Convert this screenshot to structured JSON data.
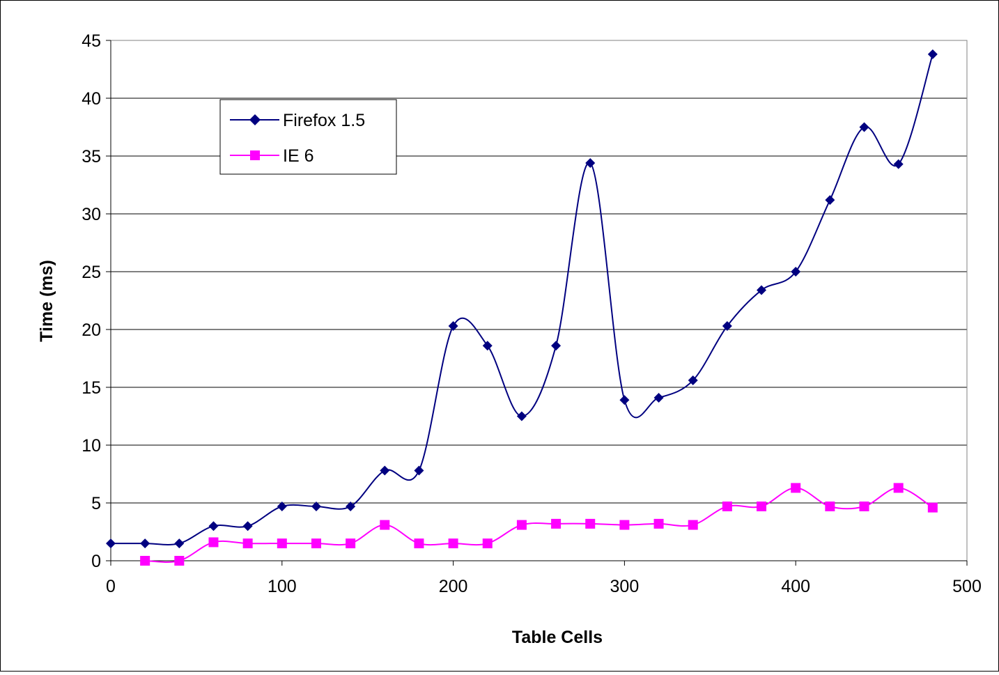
{
  "chart_data": {
    "type": "line",
    "title": "",
    "xlabel": "Table Cells",
    "ylabel": "Time (ms)",
    "xlim": [
      0,
      500
    ],
    "ylim": [
      0,
      45
    ],
    "xticks": [
      "0",
      "100",
      "200",
      "300",
      "400",
      "500"
    ],
    "yticks": [
      "0",
      "5",
      "10",
      "15",
      "20",
      "25",
      "30",
      "35",
      "40",
      "45"
    ],
    "grid": "horizontal",
    "legend_position": "top-left",
    "smoothed": true,
    "series": [
      {
        "name": "Firefox 1.5",
        "color": "#000080",
        "marker": "diamond",
        "x": [
          0,
          20,
          40,
          60,
          80,
          100,
          120,
          140,
          160,
          180,
          200,
          220,
          240,
          260,
          280,
          300,
          320,
          340,
          360,
          380,
          400,
          420,
          440,
          460,
          480
        ],
        "y": [
          1.5,
          1.5,
          1.5,
          3.0,
          3.0,
          4.7,
          4.7,
          4.7,
          7.8,
          7.8,
          20.3,
          18.6,
          12.5,
          18.6,
          34.4,
          13.9,
          14.1,
          15.6,
          20.3,
          23.4,
          25.0,
          31.2,
          37.5,
          34.3,
          43.8
        ]
      },
      {
        "name": "IE 6",
        "color": "#ff00ff",
        "marker": "square",
        "x": [
          20,
          40,
          60,
          80,
          100,
          120,
          140,
          160,
          180,
          200,
          220,
          240,
          260,
          280,
          300,
          320,
          340,
          360,
          380,
          400,
          420,
          440,
          460,
          480
        ],
        "y": [
          0.0,
          0.0,
          1.6,
          1.5,
          1.5,
          1.5,
          1.5,
          3.1,
          1.5,
          1.5,
          1.5,
          3.1,
          3.2,
          3.2,
          3.1,
          3.2,
          3.1,
          4.7,
          4.7,
          6.3,
          4.7,
          4.7,
          6.3,
          4.6
        ]
      }
    ]
  }
}
